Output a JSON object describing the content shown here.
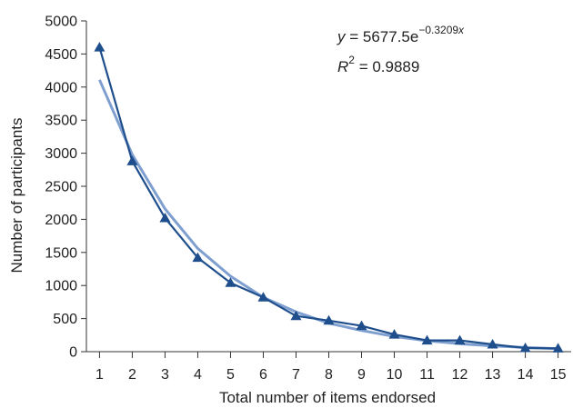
{
  "chart_data": {
    "type": "line",
    "xlabel": "Total number of items endorsed",
    "ylabel": "Number of participants",
    "x": [
      1,
      2,
      3,
      4,
      5,
      6,
      7,
      8,
      9,
      10,
      11,
      12,
      13,
      14,
      15
    ],
    "x_tick_labels": [
      "1",
      "2",
      "3",
      "4",
      "5",
      "6",
      "7",
      "8",
      "9",
      "10",
      "11",
      "12",
      "13",
      "14",
      "15"
    ],
    "y_ticks": [
      0,
      500,
      1000,
      1500,
      2000,
      2500,
      3000,
      3500,
      4000,
      4500,
      5000
    ],
    "y_tick_labels": [
      "0",
      "500",
      "1000",
      "1500",
      "2000",
      "2500",
      "3000",
      "3500",
      "4000",
      "4500",
      "5000"
    ],
    "xlim": [
      0.6,
      15.4
    ],
    "ylim": [
      0,
      5000
    ],
    "grid": false,
    "series": [
      {
        "kind": "observed",
        "marker": "triangle",
        "color": "#1f4e8c",
        "values": [
          4600,
          2880,
          2020,
          1420,
          1040,
          820,
          540,
          470,
          390,
          260,
          170,
          170,
          110,
          55,
          50
        ]
      },
      {
        "kind": "trendline",
        "color": "#7e9fcf",
        "values": [
          4110,
          2980,
          2160,
          1560,
          1140,
          820,
          600,
          430,
          320,
          230,
          165,
          120,
          87,
          63,
          46
        ]
      }
    ],
    "annotation": {
      "equation_lhs": "y",
      "equation_mid": " = 5677.5e",
      "equation_exp_prefix": "−0.3209",
      "equation_exp_var": "x",
      "r2_label": "R",
      "r2_sup": "2",
      "r2_value": " = 0.9889"
    }
  }
}
